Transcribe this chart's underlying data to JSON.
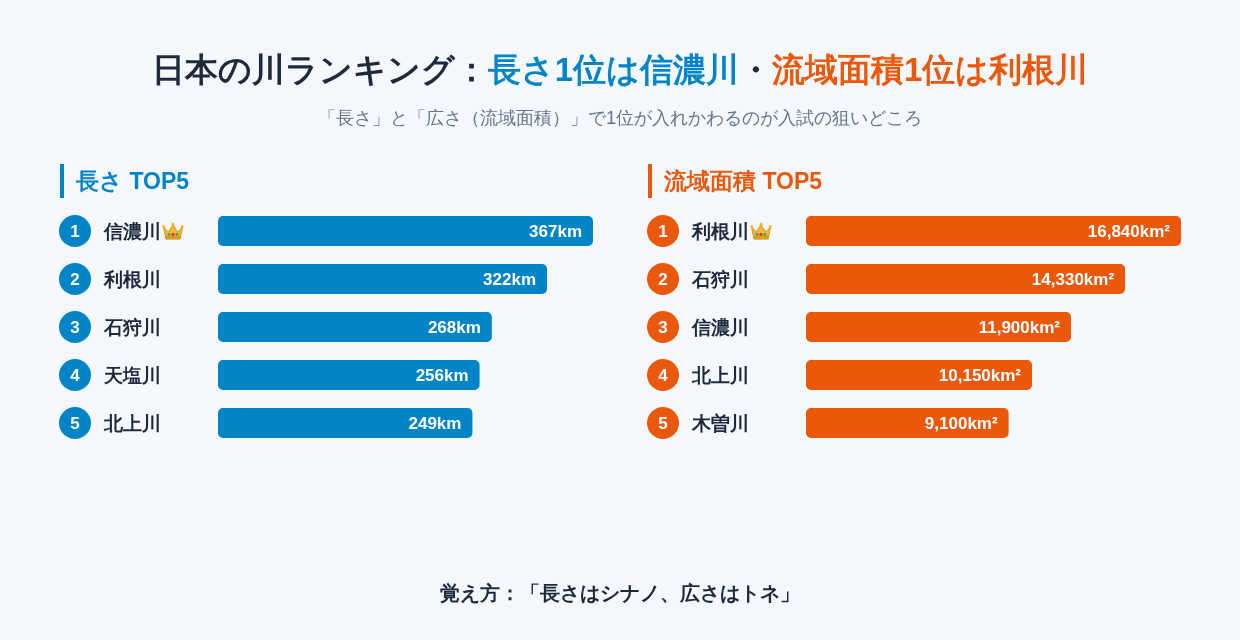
{
  "chart_data": [
    {
      "type": "other",
      "title": "日本の川ランキング：長さ1位は信濃川・流域面積1位は利根川",
      "subtitle": "「長さ」と「広さ（流域面積）」で1位が入れかわるのが入試の狙いどころ",
      "annotations": [
        "覚え方：「長さはシナノ、広さはトネ」"
      ]
    },
    {
      "type": "bar",
      "orientation": "horizontal",
      "title": "長さ TOP5",
      "categories": [
        "信濃川",
        "利根川",
        "石狩川",
        "天塩川",
        "北上川"
      ],
      "values": [
        367,
        322,
        268,
        256,
        249
      ],
      "value_labels": [
        "367km",
        "322km",
        "268km",
        "256km",
        "249km"
      ],
      "color": "#0284c7",
      "xlim": [
        0,
        367
      ],
      "tick_labels": "y",
      "annotations": [
        "1",
        "2",
        "3",
        "4",
        "5"
      ]
    },
    {
      "type": "bar",
      "orientation": "horizontal",
      "title": "流域面積 TOP5",
      "categories": [
        "利根川",
        "石狩川",
        "信濃川",
        "北上川",
        "木曽川"
      ],
      "values": [
        16840,
        14330,
        11900,
        10150,
        9100
      ],
      "value_labels": [
        "16,840km²",
        "14,330km²",
        "11,900km²",
        "10,150km²",
        "9,100km²"
      ],
      "color": "#ea580c",
      "xlim": [
        0,
        16840
      ],
      "tick_labels": "y",
      "annotations": [
        "1",
        "2",
        "3",
        "4",
        "5"
      ]
    }
  ]
}
